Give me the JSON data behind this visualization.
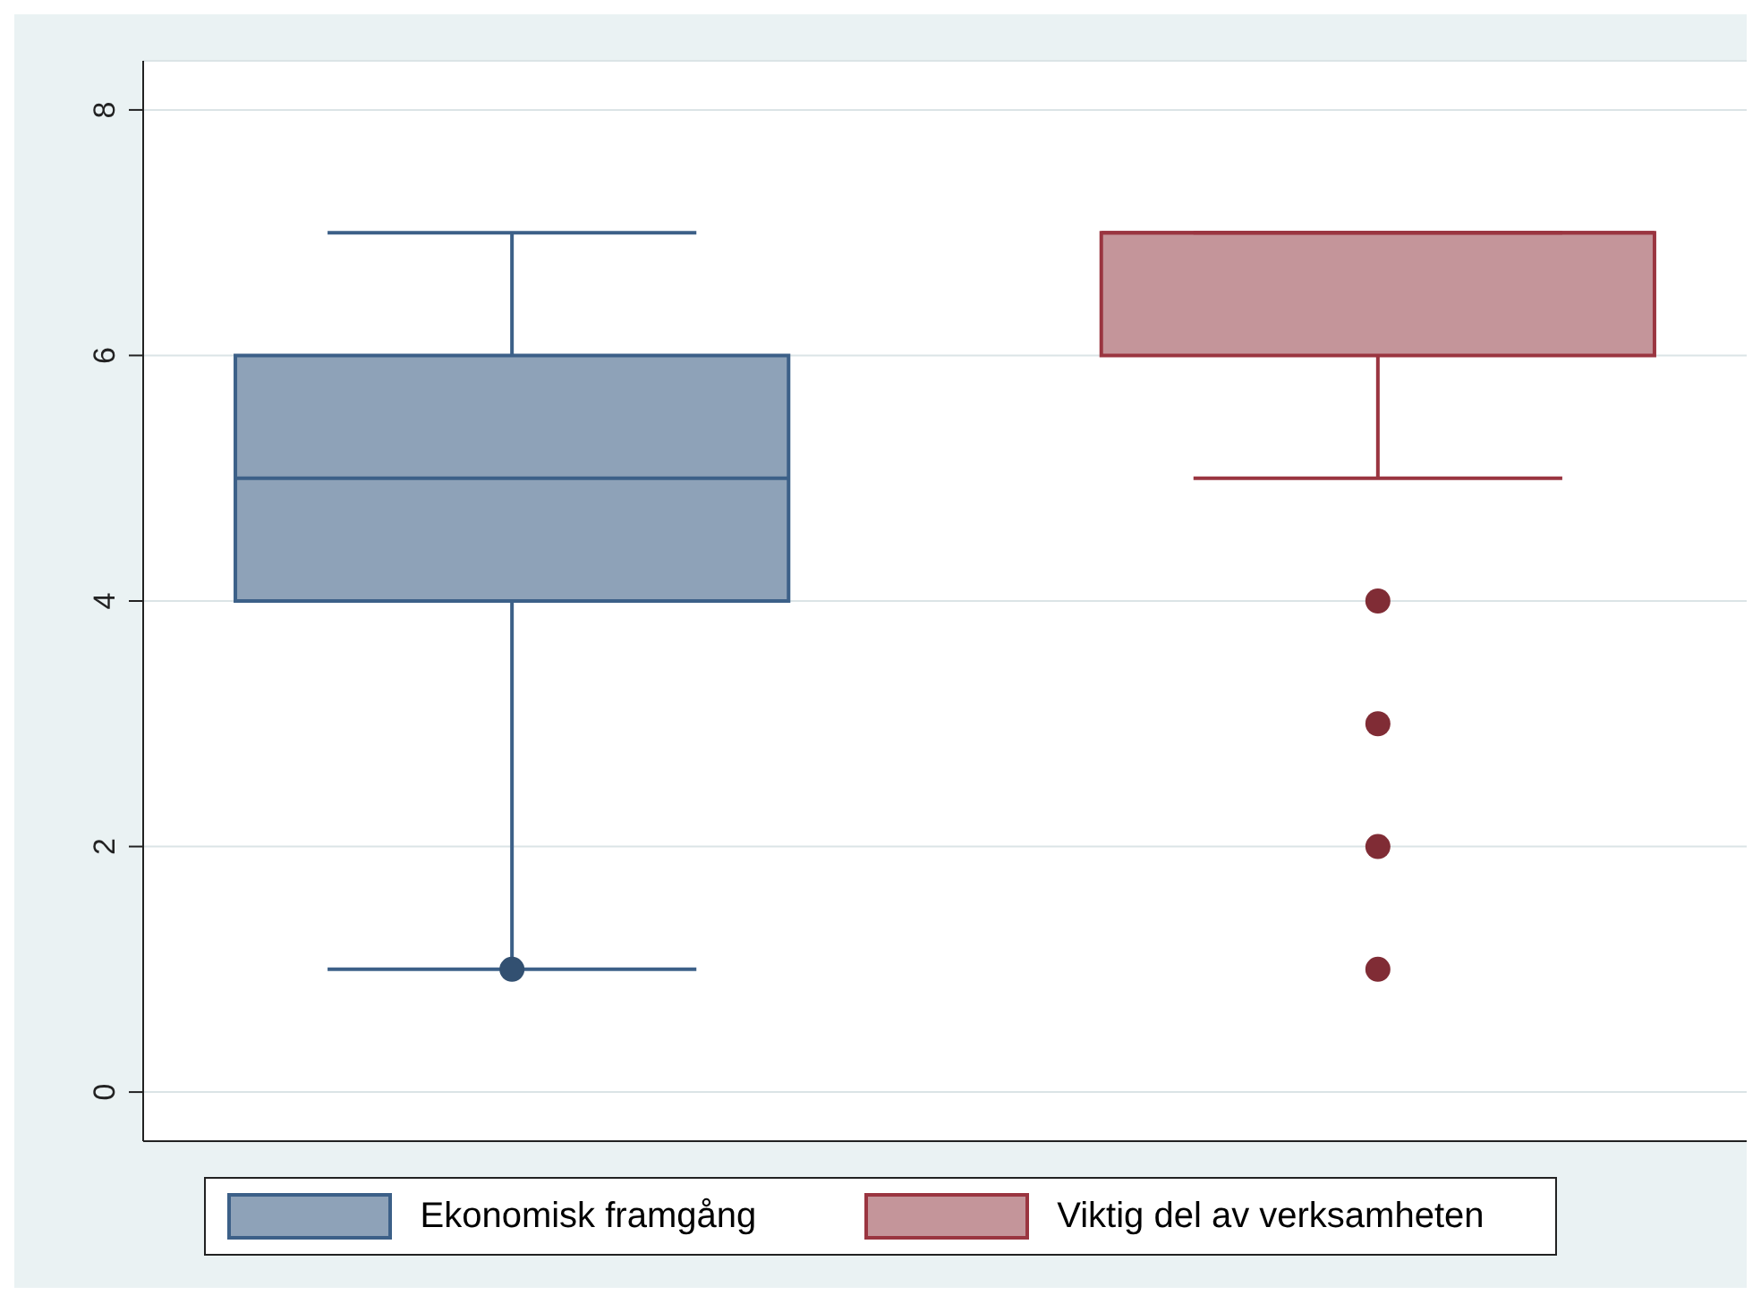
{
  "chart_data": {
    "type": "box",
    "categories": [
      null,
      null
    ],
    "series": [
      {
        "name": "Ekonomisk framgång",
        "color": "#8ea2b8",
        "boxes": [
          {
            "low": 1,
            "q1": 4,
            "median": 5,
            "q3": 6,
            "high": 7,
            "outliers": [
              1
            ]
          },
          null
        ]
      },
      {
        "name": "Viktig del av verksamheten",
        "color": "#c4959a",
        "boxes": [
          null,
          {
            "low": 5,
            "q1": 6,
            "median": 7,
            "q3": 7,
            "high": 7,
            "outliers": [
              4,
              3,
              2,
              1
            ]
          }
        ]
      }
    ],
    "ylim": [
      -0.4,
      8.4
    ],
    "yticks": [
      0,
      2,
      4,
      6,
      8
    ],
    "grid": "y",
    "legend": "bottom"
  }
}
